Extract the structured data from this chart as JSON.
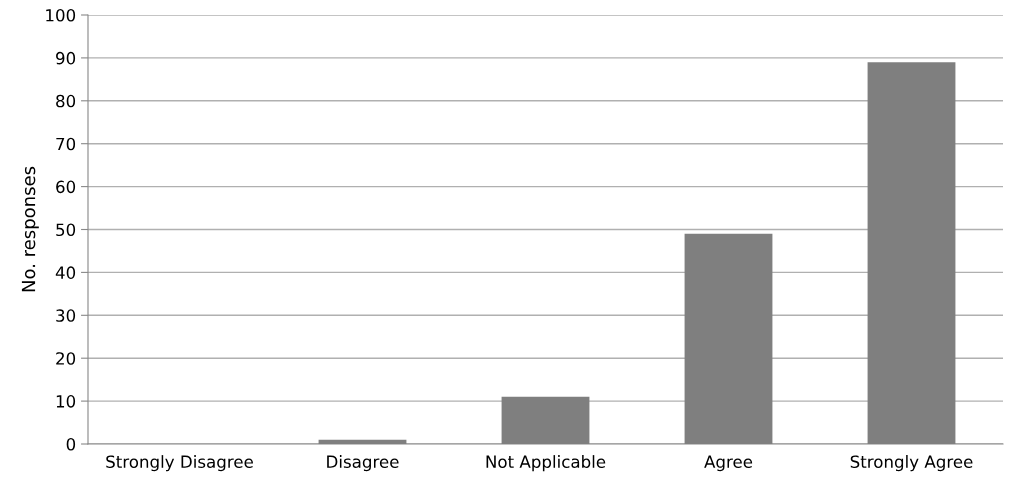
{
  "chart_data": {
    "type": "bar",
    "ylabel": "No. responses",
    "categories": [
      "Strongly Disagree",
      "Disagree",
      "Not Applicable",
      "Agree",
      "Strongly Agree"
    ],
    "values": [
      0,
      1,
      11,
      49,
      89
    ],
    "color": "#7f7f7f",
    "ylim": [
      0,
      100
    ],
    "yticks": [
      0,
      10,
      20,
      30,
      40,
      50,
      60,
      70,
      80,
      90,
      100
    ],
    "grid": "y"
  }
}
